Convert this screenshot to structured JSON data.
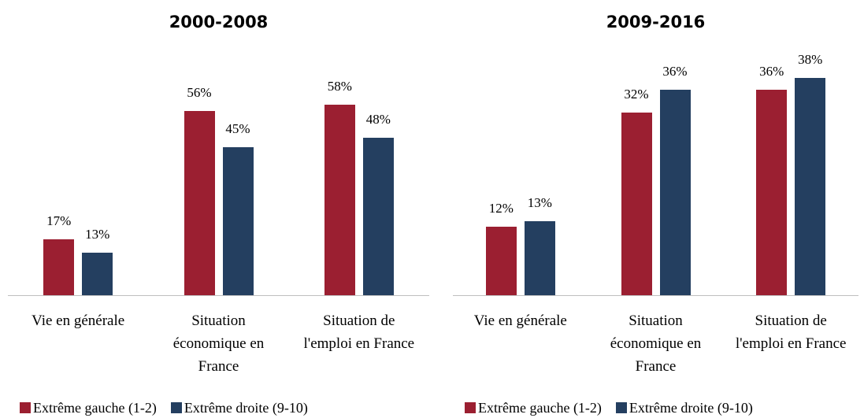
{
  "chart_data": [
    {
      "type": "bar",
      "title": "2000-2008",
      "categories": [
        "Vie en générale",
        "Situation économique en France",
        "Situation de l'emploi en France"
      ],
      "series": [
        {
          "name": "Extrême gauche (1-2)",
          "color": "#9b1f31",
          "values": [
            17,
            56,
            58
          ],
          "value_labels": [
            "17%",
            "56%",
            "58%"
          ]
        },
        {
          "name": "Extrême droite (9-10)",
          "color": "#243f60",
          "values": [
            13,
            45,
            48
          ],
          "value_labels": [
            "13%",
            "45%",
            "48%"
          ]
        }
      ],
      "legend": "bottom"
    },
    {
      "type": "bar",
      "title": "2009-2016",
      "categories": [
        "Vie en générale",
        "Situation économique en France",
        "Situation de l'emploi en France"
      ],
      "series": [
        {
          "name": "Extrême gauche (1-2)",
          "color": "#9b1f31",
          "values": [
            12,
            32,
            36
          ],
          "value_labels": [
            "12%",
            "32%",
            "36%"
          ]
        },
        {
          "name": "Extrême droite (9-10)",
          "color": "#243f60",
          "values": [
            13,
            36,
            38
          ],
          "value_labels": [
            "13%",
            "36%",
            "38%"
          ]
        }
      ],
      "legend": "bottom"
    }
  ]
}
